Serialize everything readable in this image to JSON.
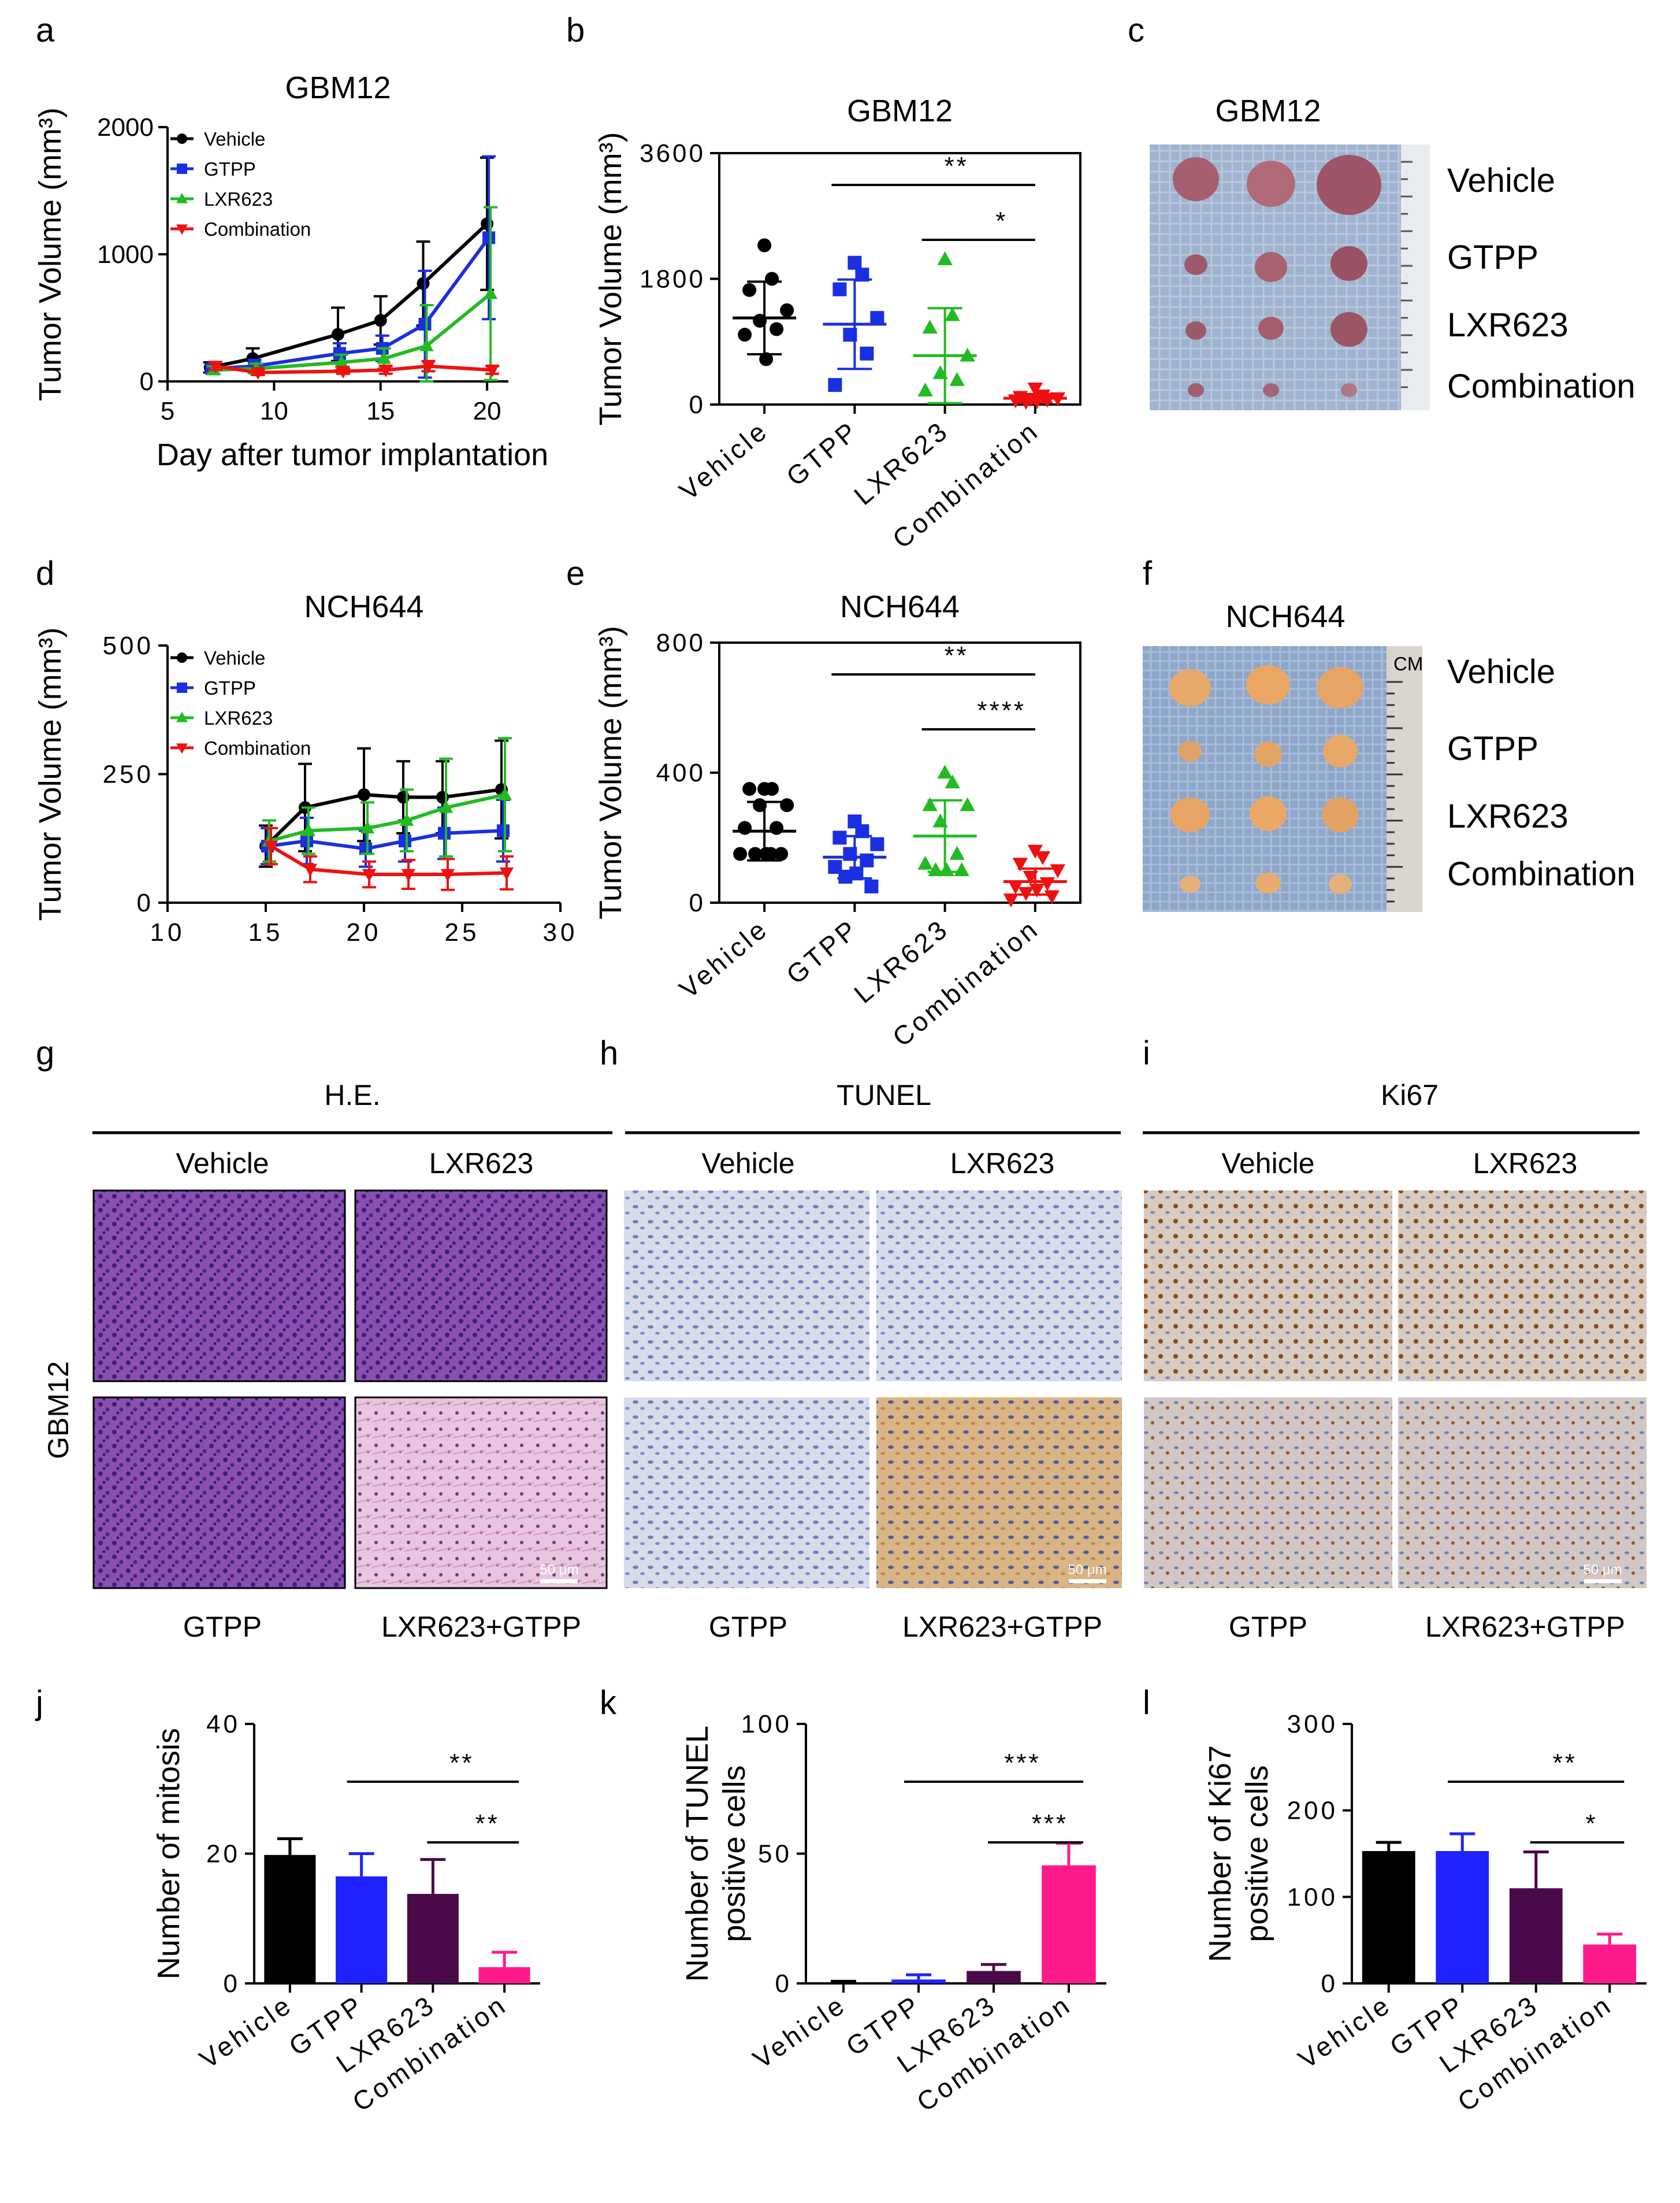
{
  "panels": {
    "a": {
      "letter": "a"
    },
    "b": {
      "letter": "b"
    },
    "c": {
      "letter": "c"
    },
    "d": {
      "letter": "d"
    },
    "e": {
      "letter": "e"
    },
    "f": {
      "letter": "f"
    },
    "g": {
      "letter": "g"
    },
    "h": {
      "letter": "h"
    },
    "i": {
      "letter": "i"
    },
    "j": {
      "letter": "j"
    },
    "k": {
      "letter": "k"
    },
    "l": {
      "letter": "l"
    }
  },
  "colors": {
    "vehicle": "#000000",
    "gtpp": "#1a2fe0",
    "lxr623": "#22bb22",
    "combination": "#ee1111",
    "bar_vehicle": "#000000",
    "bar_gtpp": "#1f22ff",
    "bar_lxr623": "#4a0a4a",
    "bar_combination": "#ff1a8c"
  },
  "tumor_photos": {
    "c": {
      "title": "GBM12",
      "rows": [
        "Vehicle",
        "GTPP",
        "LXR623",
        "Combination"
      ],
      "ruler_unit": ""
    },
    "f": {
      "title": "NCH644",
      "rows": [
        "Vehicle",
        "GTPP",
        "LXR623",
        "Combination"
      ],
      "ruler_unit": "CM"
    }
  },
  "histology": {
    "g": {
      "stain": "H.E.",
      "top_labels": [
        "Vehicle",
        "LXR623"
      ],
      "bottom_labels": [
        "GTPP",
        "LXR623+GTPP"
      ],
      "scale_bar": "50 μm"
    },
    "h": {
      "stain": "TUNEL",
      "top_labels": [
        "Vehicle",
        "LXR623"
      ],
      "bottom_labels": [
        "GTPP",
        "LXR623+GTPP"
      ],
      "scale_bar": "50 μm"
    },
    "i": {
      "stain": "Ki67",
      "top_labels": [
        "Vehicle",
        "LXR623"
      ],
      "bottom_labels": [
        "GTPP",
        "LXR623+GTPP"
      ],
      "scale_bar": "50 μm"
    },
    "row_label": "GBM12"
  },
  "chart_data": [
    {
      "id": "a",
      "type": "line",
      "title": "GBM12",
      "xlabel": "Day after tumor implantation",
      "ylabel": "Tumor Volume (mm³)",
      "xlim": [
        5,
        21
      ],
      "ylim": [
        0,
        2000
      ],
      "xticks": [
        5,
        10,
        15,
        20
      ],
      "yticks": [
        0,
        1000,
        2000
      ],
      "xtick_labels": [
        "5",
        "10",
        "15",
        "20"
      ],
      "ytick_labels": [
        "0",
        "1000",
        "2000"
      ],
      "x": [
        7,
        9,
        13,
        15,
        17,
        20
      ],
      "series": [
        {
          "name": "Vehicle",
          "color": "#000000",
          "values": [
            110,
            180,
            370,
            480,
            770,
            1240
          ],
          "errors": [
            40,
            80,
            210,
            190,
            330,
            520
          ]
        },
        {
          "name": "GTPP",
          "color": "#1a2fe0",
          "values": [
            100,
            120,
            220,
            260,
            450,
            1130
          ],
          "errors": [
            30,
            50,
            80,
            100,
            420,
            640
          ]
        },
        {
          "name": "LXR623",
          "color": "#22bb22",
          "values": [
            90,
            100,
            150,
            180,
            280,
            690
          ],
          "errors": [
            30,
            40,
            60,
            80,
            320,
            680
          ]
        },
        {
          "name": "Combination",
          "color": "#ee1111",
          "values": [
            120,
            70,
            80,
            90,
            120,
            90
          ],
          "errors": [
            30,
            20,
            20,
            30,
            40,
            30
          ]
        }
      ]
    },
    {
      "id": "b",
      "type": "scatter",
      "title": "GBM12",
      "ylabel": "Tumor Volume (mm³)",
      "ylim": [
        0,
        3600
      ],
      "yticks": [
        0,
        1800,
        3600
      ],
      "ytick_labels": [
        "0",
        "1800",
        "3600"
      ],
      "categories": [
        "Vehicle",
        "GTPP",
        "LXR623",
        "Combination"
      ],
      "colors": [
        "#000000",
        "#1a2fe0",
        "#22bb22",
        "#ee1111"
      ],
      "markers": [
        "circle",
        "square",
        "triangle",
        "triangle-down"
      ],
      "points": [
        [
          2280,
          1800,
          1640,
          1350,
          1200,
          1080,
          1000,
          650
        ],
        [
          2030,
          1860,
          1650,
          1240,
          1000,
          730,
          280
        ],
        [
          2080,
          1280,
          1100,
          700,
          450,
          350,
          200
        ],
        [
          230,
          130,
          110,
          90,
          80,
          70,
          60,
          50,
          40
        ]
      ],
      "means": [
        1240,
        1150,
        700,
        90
      ],
      "sd": [
        520,
        640,
        680,
        60
      ],
      "significance": [
        {
          "from": 1,
          "to": 3,
          "label": "**"
        },
        {
          "from": 2,
          "to": 3,
          "label": "*"
        }
      ]
    },
    {
      "id": "d",
      "type": "line",
      "title": "NCH644",
      "xlabel": "",
      "ylabel": "Tumor Volume (mm³)",
      "xlim": [
        10,
        30
      ],
      "ylim": [
        0,
        500
      ],
      "xticks": [
        10,
        15,
        20,
        25,
        30
      ],
      "yticks": [
        0,
        250,
        500
      ],
      "xtick_labels": [
        "10",
        "15",
        "20",
        "25",
        "30"
      ],
      "ytick_labels": [
        "0",
        "250",
        "500"
      ],
      "x": [
        15,
        17,
        20,
        22,
        24,
        27
      ],
      "series": [
        {
          "name": "Vehicle",
          "color": "#000000",
          "values": [
            110,
            185,
            210,
            205,
            205,
            220
          ],
          "errors": [
            40,
            85,
            90,
            70,
            70,
            95
          ]
        },
        {
          "name": "GTPP",
          "color": "#1a2fe0",
          "values": [
            110,
            120,
            105,
            120,
            135,
            140
          ],
          "errors": [
            35,
            45,
            35,
            40,
            50,
            60
          ]
        },
        {
          "name": "LXR623",
          "color": "#22bb22",
          "values": [
            120,
            140,
            145,
            160,
            185,
            210
          ],
          "errors": [
            40,
            45,
            50,
            60,
            95,
            110
          ]
        },
        {
          "name": "Combination",
          "color": "#ee1111",
          "values": [
            110,
            65,
            55,
            55,
            55,
            58
          ],
          "errors": [
            35,
            25,
            25,
            28,
            30,
            32
          ]
        }
      ]
    },
    {
      "id": "e",
      "type": "scatter",
      "title": "NCH644",
      "ylabel": "Tumor Volume (mm³)",
      "ylim": [
        0,
        800
      ],
      "yticks": [
        0,
        400,
        800
      ],
      "ytick_labels": [
        "0",
        "400",
        "800"
      ],
      "categories": [
        "Vehicle",
        "GTPP",
        "LXR623",
        "Combination"
      ],
      "colors": [
        "#000000",
        "#1a2fe0",
        "#22bb22",
        "#ee1111"
      ],
      "markers": [
        "circle",
        "square",
        "triangle",
        "triangle-down"
      ],
      "points": [
        [
          350,
          350,
          350,
          300,
          300,
          230,
          230,
          150,
          150,
          150,
          150,
          150
        ],
        [
          250,
          220,
          200,
          180,
          150,
          130,
          110,
          90,
          80,
          50
        ],
        [
          400,
          370,
          300,
          300,
          250,
          150,
          120,
          100,
          100,
          100
        ],
        [
          160,
          140,
          120,
          100,
          80,
          60,
          50,
          40,
          30,
          20,
          10
        ]
      ],
      "means": [
        220,
        140,
        205,
        65
      ],
      "sd": [
        90,
        65,
        110,
        40
      ],
      "significance": [
        {
          "from": 1,
          "to": 3,
          "label": "**"
        },
        {
          "from": 2,
          "to": 3,
          "label": "****"
        }
      ]
    },
    {
      "id": "j",
      "type": "bar",
      "ylabel": "Number of mitosis",
      "ylim": [
        0,
        40
      ],
      "yticks": [
        0,
        20,
        40
      ],
      "ytick_labels": [
        "0",
        "20",
        "40"
      ],
      "categories": [
        "Vehicle",
        "GTPP",
        "LXR623",
        "Combination"
      ],
      "values": [
        19.8,
        16.5,
        13.8,
        2.5
      ],
      "errors": [
        2.5,
        3.5,
        5.3,
        2.3
      ],
      "significance": [
        {
          "from": 1,
          "to": 3,
          "label": "**"
        },
        {
          "from": 2,
          "to": 3,
          "label": "**"
        }
      ]
    },
    {
      "id": "k",
      "type": "bar",
      "ylabel": "Number of TUNEL positive cells",
      "ylabel_lines": [
        "Number of TUNEL",
        "positive cells"
      ],
      "ylim": [
        0,
        100
      ],
      "yticks": [
        0,
        50,
        100
      ],
      "ytick_labels": [
        "0",
        "50",
        "100"
      ],
      "categories": [
        "Vehicle",
        "GTPP",
        "LXR623",
        "Combination"
      ],
      "values": [
        0.2,
        1.5,
        4.8,
        45.5
      ],
      "errors": [
        0.6,
        1.8,
        2.5,
        8.5
      ],
      "significance": [
        {
          "from": 1,
          "to": 3,
          "label": "***"
        },
        {
          "from": 2,
          "to": 3,
          "label": "***"
        }
      ]
    },
    {
      "id": "l",
      "type": "bar",
      "ylabel": "Number of Ki67 positive cells",
      "ylabel_lines": [
        "Number of Ki67",
        "positive cells"
      ],
      "ylim": [
        0,
        300
      ],
      "yticks": [
        0,
        100,
        200,
        300
      ],
      "ytick_labels": [
        "0",
        "100",
        "200",
        "300"
      ],
      "categories": [
        "Vehicle",
        "GTPP",
        "LXR623",
        "Combination"
      ],
      "values": [
        153,
        153,
        110,
        45
      ],
      "errors": [
        10,
        20,
        42,
        12
      ],
      "significance": [
        {
          "from": 1,
          "to": 3,
          "label": "**"
        },
        {
          "from": 2,
          "to": 3,
          "label": "*"
        }
      ]
    }
  ]
}
